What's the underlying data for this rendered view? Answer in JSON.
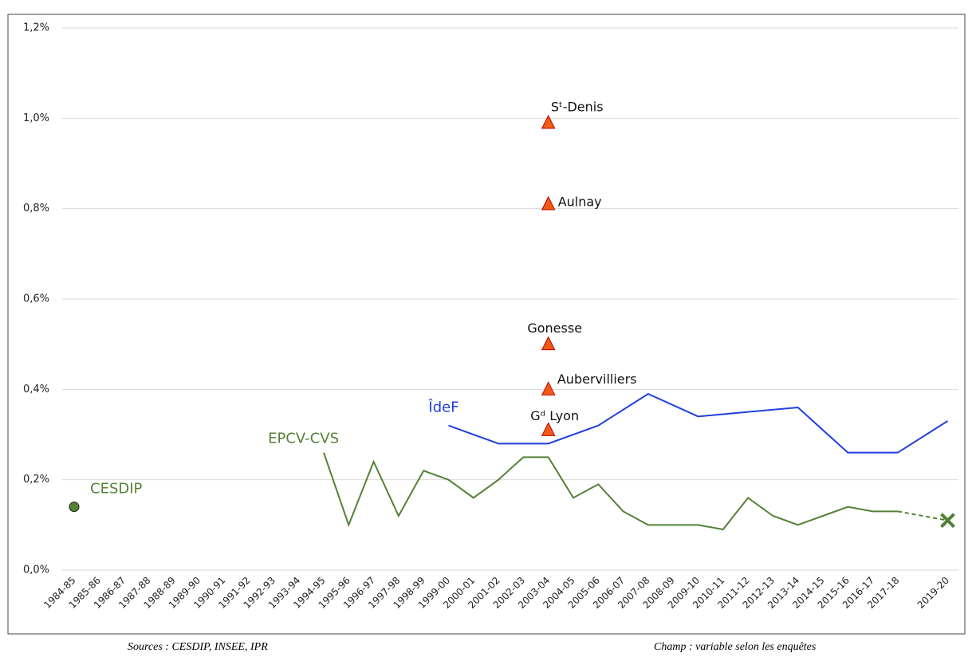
{
  "chart_data": {
    "type": "line",
    "categories": [
      "1984-85",
      "1985-86",
      "1986-87",
      "1987-88",
      "1988-89",
      "1989-90",
      "1990-91",
      "1991-92",
      "1992-93",
      "1993-94",
      "1994-95",
      "1995-96",
      "1996-97",
      "1997-98",
      "1998-99",
      "1999-00",
      "2000-01",
      "2001-02",
      "2002-03",
      "2003-04",
      "2004-05",
      "2005-06",
      "2006-07",
      "2007-08",
      "2008-09",
      "2009-10",
      "2010-11",
      "2011-12",
      "2012-13",
      "2013-14",
      "2014-15",
      "2015-16",
      "2016-17",
      "2017-18",
      null,
      "2019-20"
    ],
    "ylim": [
      0,
      1.2
    ],
    "yticks": [
      {
        "value": 0,
        "label": "0,0%"
      },
      {
        "value": 0.2,
        "label": "0,2%"
      },
      {
        "value": 0.4,
        "label": "0,4%"
      },
      {
        "value": 0.6,
        "label": "0,6%"
      },
      {
        "value": 0.8,
        "label": "0,8%"
      },
      {
        "value": 1.0,
        "label": "1,0%"
      },
      {
        "value": 1.2,
        "label": "1,2%"
      }
    ],
    "grid": true,
    "series": [
      {
        "name": "CESDIP",
        "color": "#548235",
        "marker": "circle",
        "gap_style": "none",
        "values": [
          0.14,
          null,
          null,
          null,
          null,
          null,
          null,
          null,
          null,
          null,
          null,
          null,
          null,
          null,
          null,
          null,
          null,
          null,
          null,
          null,
          null,
          null,
          null,
          null,
          null,
          null,
          null,
          null,
          null,
          null,
          null,
          null,
          null,
          null,
          null,
          null
        ]
      },
      {
        "name": "EPCV-CVS",
        "color": "#538135",
        "marker": "none",
        "end_marker": "x",
        "gap_style": "dashed",
        "values": [
          null,
          null,
          null,
          null,
          null,
          null,
          null,
          null,
          null,
          null,
          0.26,
          0.1,
          0.24,
          0.12,
          0.22,
          0.2,
          0.16,
          0.2,
          0.25,
          0.25,
          0.16,
          0.19,
          0.13,
          0.1,
          0.1,
          0.1,
          0.09,
          0.16,
          0.12,
          0.1,
          0.12,
          0.14,
          0.13,
          0.13,
          null,
          0.11
        ]
      },
      {
        "name": "ÎdeF",
        "color": "#1f3fe0",
        "marker": "none",
        "gap_style": "connect",
        "values": [
          null,
          null,
          null,
          null,
          null,
          null,
          null,
          null,
          null,
          null,
          null,
          null,
          null,
          null,
          null,
          0.32,
          null,
          0.28,
          null,
          0.28,
          null,
          0.32,
          null,
          0.39,
          null,
          0.34,
          null,
          0.35,
          null,
          0.36,
          null,
          0.26,
          null,
          0.26,
          null,
          0.33
        ]
      },
      {
        "name": "Sᵗ-Denis",
        "color": "#f05a16",
        "marker": "triangle",
        "gap_style": "none",
        "values": [
          null,
          null,
          null,
          null,
          null,
          null,
          null,
          null,
          null,
          null,
          null,
          null,
          null,
          null,
          null,
          null,
          null,
          null,
          null,
          0.99,
          null,
          null,
          null,
          null,
          null,
          null,
          null,
          null,
          null,
          null,
          null,
          null,
          null,
          null,
          null,
          null
        ]
      },
      {
        "name": "Aulnay",
        "color": "#f05a16",
        "marker": "triangle",
        "gap_style": "none",
        "values": [
          null,
          null,
          null,
          null,
          null,
          null,
          null,
          null,
          null,
          null,
          null,
          null,
          null,
          null,
          null,
          null,
          null,
          null,
          null,
          0.81,
          null,
          null,
          null,
          null,
          null,
          null,
          null,
          null,
          null,
          null,
          null,
          null,
          null,
          null,
          null,
          null
        ]
      },
      {
        "name": "Gonesse",
        "color": "#f05a16",
        "marker": "triangle",
        "gap_style": "none",
        "values": [
          null,
          null,
          null,
          null,
          null,
          null,
          null,
          null,
          null,
          null,
          null,
          null,
          null,
          null,
          null,
          null,
          null,
          null,
          null,
          0.5,
          null,
          null,
          null,
          null,
          null,
          null,
          null,
          null,
          null,
          null,
          null,
          null,
          null,
          null,
          null,
          null
        ]
      },
      {
        "name": "Aubervilliers",
        "color": "#f05a16",
        "marker": "triangle",
        "gap_style": "none",
        "values": [
          null,
          null,
          null,
          null,
          null,
          null,
          null,
          null,
          null,
          null,
          null,
          null,
          null,
          null,
          null,
          null,
          null,
          null,
          null,
          0.4,
          null,
          null,
          null,
          null,
          null,
          null,
          null,
          null,
          null,
          null,
          null,
          null,
          null,
          null,
          null,
          null
        ]
      },
      {
        "name": "Gᵈ Lyon",
        "color": "#f05a16",
        "marker": "triangle",
        "gap_style": "none",
        "values": [
          null,
          null,
          null,
          null,
          null,
          null,
          null,
          null,
          null,
          null,
          null,
          null,
          null,
          null,
          null,
          null,
          null,
          null,
          null,
          0.31,
          null,
          null,
          null,
          null,
          null,
          null,
          null,
          null,
          null,
          null,
          null,
          null,
          null,
          null,
          null,
          null
        ]
      }
    ],
    "sources": "Sources : CESDIP, INSEE, IPR",
    "scope": "Champ : variable selon les enquêtes"
  }
}
